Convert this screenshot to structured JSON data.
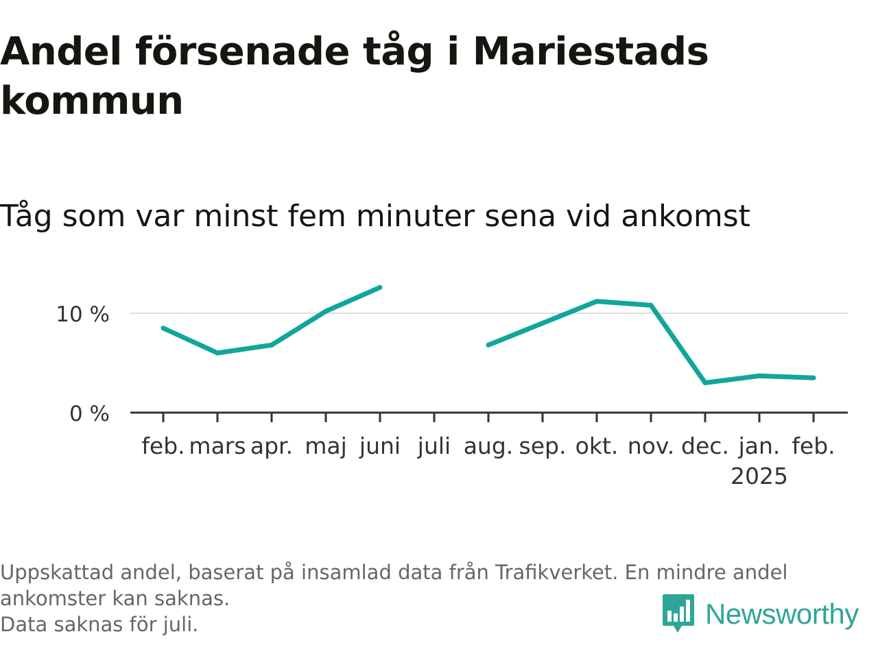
{
  "title": "Andel försenade tåg i Mariestads kommun",
  "subtitle": "Tåg som var minst fem minuter sena vid ankomst",
  "chart_data": {
    "type": "line",
    "categories": [
      "feb.",
      "mars",
      "apr.",
      "maj",
      "juni",
      "juli",
      "aug.",
      "sep.",
      "okt.",
      "nov.",
      "dec.",
      "jan.",
      "feb."
    ],
    "year_label": "2025",
    "year_label_under": "jan.",
    "series": [
      {
        "values": [
          8.5,
          6.0,
          6.8,
          10.2,
          12.6,
          null,
          6.8,
          9.0,
          11.2,
          10.8,
          3.0,
          3.7,
          3.5
        ]
      }
    ],
    "yticks": [
      0,
      10
    ],
    "ytick_labels": [
      "0 %",
      "10 %"
    ],
    "ylim": [
      0,
      14
    ],
    "grid": true,
    "line_color": "#12a59c"
  },
  "footnote": {
    "line1": "Uppskattad andel, baserat på insamlad data från Trafikverket. En mindre andel",
    "line2": "ankomster kan saknas.",
    "line3": "Data saknas för juli."
  },
  "brand": {
    "name": "Newsworthy",
    "icon": "newsworthy-chart-logo-icon",
    "color": "#2fa59a"
  }
}
